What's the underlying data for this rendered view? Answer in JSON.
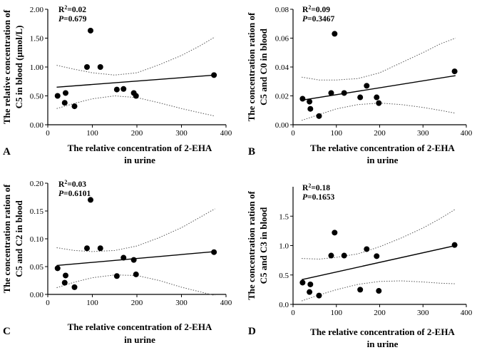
{
  "figure": {
    "panels": [
      {
        "id": "A",
        "label": "A"
      },
      {
        "id": "B",
        "label": "B"
      },
      {
        "id": "C",
        "label": "C"
      },
      {
        "id": "D",
        "label": "D"
      }
    ]
  },
  "chart_data": [
    {
      "type": "scatter",
      "panel": "A",
      "xlabel_line1": "The relative concentration of 2-EHA",
      "xlabel_line2": "in urine",
      "ylabel_line1": "The relative concentration of",
      "ylabel_line2": "C5 in blood (μmol/L)",
      "xlim": [
        0,
        400
      ],
      "ylim": [
        0,
        2.0
      ],
      "xticks": [
        0,
        100,
        200,
        300,
        400
      ],
      "xtick_labels": [
        "0",
        "100",
        "200",
        "300",
        "400"
      ],
      "yticks": [
        0,
        0.5,
        1.0,
        1.5,
        2.0
      ],
      "ytick_labels": [
        "0.00",
        "0.50",
        "1.00",
        "1.50",
        "2.00"
      ],
      "r2_prefix": "R",
      "r2_value": "=0.02",
      "p_prefix": "P",
      "p_value": "=0.679",
      "points": [
        [
          22,
          0.5
        ],
        [
          38,
          0.38
        ],
        [
          40,
          0.55
        ],
        [
          60,
          0.32
        ],
        [
          88,
          1.0
        ],
        [
          96,
          1.63
        ],
        [
          118,
          1.0
        ],
        [
          155,
          0.61
        ],
        [
          170,
          0.62
        ],
        [
          193,
          0.55
        ],
        [
          198,
          0.5
        ],
        [
          373,
          0.86
        ]
      ],
      "fit_line": [
        [
          20,
          0.65
        ],
        [
          375,
          0.86
        ]
      ],
      "ci_upper": [
        [
          20,
          1.03
        ],
        [
          60,
          0.96
        ],
        [
          100,
          0.9
        ],
        [
          150,
          0.86
        ],
        [
          200,
          0.9
        ],
        [
          250,
          1.04
        ],
        [
          300,
          1.2
        ],
        [
          340,
          1.36
        ],
        [
          375,
          1.52
        ]
      ],
      "ci_lower": [
        [
          20,
          0.28
        ],
        [
          60,
          0.37
        ],
        [
          100,
          0.45
        ],
        [
          150,
          0.5
        ],
        [
          200,
          0.47
        ],
        [
          250,
          0.38
        ],
        [
          300,
          0.28
        ],
        [
          340,
          0.21
        ],
        [
          375,
          0.15
        ]
      ]
    },
    {
      "type": "scatter",
      "panel": "B",
      "xlabel_line1": "The relative concentration of 2-EHA",
      "xlabel_line2": "in urine",
      "ylabel_line1": "The concentration ration of",
      "ylabel_line2": "C5 and C0 in blood",
      "xlim": [
        0,
        400
      ],
      "ylim": [
        0,
        0.08
      ],
      "xticks": [
        0,
        100,
        200,
        300,
        400
      ],
      "xtick_labels": [
        "0",
        "100",
        "200",
        "300",
        "400"
      ],
      "yticks": [
        0,
        0.02,
        0.04,
        0.06,
        0.08
      ],
      "ytick_labels": [
        "0.00",
        "0.02",
        "0.04",
        "0.06",
        "0.08"
      ],
      "r2_prefix": "R",
      "r2_value": "=0.09",
      "p_prefix": "P",
      "p_value": "=0.3467",
      "points": [
        [
          22,
          0.018
        ],
        [
          38,
          0.016
        ],
        [
          40,
          0.011
        ],
        [
          60,
          0.006
        ],
        [
          88,
          0.022
        ],
        [
          96,
          0.063
        ],
        [
          118,
          0.022
        ],
        [
          155,
          0.019
        ],
        [
          170,
          0.027
        ],
        [
          193,
          0.019
        ],
        [
          198,
          0.015
        ],
        [
          373,
          0.037
        ]
      ],
      "fit_line": [
        [
          20,
          0.017
        ],
        [
          375,
          0.034
        ]
      ],
      "ci_upper": [
        [
          20,
          0.033
        ],
        [
          60,
          0.031
        ],
        [
          100,
          0.031
        ],
        [
          150,
          0.032
        ],
        [
          200,
          0.036
        ],
        [
          250,
          0.043
        ],
        [
          300,
          0.05
        ],
        [
          340,
          0.056
        ],
        [
          375,
          0.06
        ]
      ],
      "ci_lower": [
        [
          20,
          0.003
        ],
        [
          60,
          0.007
        ],
        [
          100,
          0.011
        ],
        [
          150,
          0.014
        ],
        [
          200,
          0.015
        ],
        [
          250,
          0.014
        ],
        [
          300,
          0.012
        ],
        [
          340,
          0.01
        ],
        [
          375,
          0.008
        ]
      ]
    },
    {
      "type": "scatter",
      "panel": "C",
      "xlabel_line1": "The relative concentration of 2-EHA",
      "xlabel_line2": "in urine",
      "ylabel_line1": "The concentration ration of",
      "ylabel_line2": "C5 and C2 in blood",
      "xlim": [
        0,
        400
      ],
      "ylim": [
        0,
        0.2
      ],
      "xticks": [
        0,
        100,
        200,
        300,
        400
      ],
      "xtick_labels": [
        "0",
        "100",
        "200",
        "300",
        "400"
      ],
      "yticks": [
        0,
        0.05,
        0.1,
        0.15,
        0.2
      ],
      "ytick_labels": [
        "0.00",
        "0.05",
        "0.10",
        "0.15",
        "0.20"
      ],
      "r2_prefix": "R",
      "r2_value": "=0.03",
      "p_prefix": "P",
      "p_value": "=0.6101",
      "points": [
        [
          22,
          0.047
        ],
        [
          38,
          0.021
        ],
        [
          40,
          0.034
        ],
        [
          60,
          0.013
        ],
        [
          88,
          0.083
        ],
        [
          96,
          0.17
        ],
        [
          118,
          0.083
        ],
        [
          155,
          0.033
        ],
        [
          170,
          0.066
        ],
        [
          193,
          0.062
        ],
        [
          198,
          0.036
        ],
        [
          373,
          0.076
        ]
      ],
      "fit_line": [
        [
          20,
          0.052
        ],
        [
          375,
          0.077
        ]
      ],
      "ci_upper": [
        [
          20,
          0.084
        ],
        [
          60,
          0.079
        ],
        [
          100,
          0.077
        ],
        [
          150,
          0.079
        ],
        [
          200,
          0.087
        ],
        [
          250,
          0.102
        ],
        [
          300,
          0.12
        ],
        [
          340,
          0.138
        ],
        [
          375,
          0.154
        ]
      ],
      "ci_lower": [
        [
          20,
          0.012
        ],
        [
          60,
          0.022
        ],
        [
          100,
          0.03
        ],
        [
          150,
          0.035
        ],
        [
          200,
          0.034
        ],
        [
          250,
          0.025
        ],
        [
          300,
          0.013
        ],
        [
          340,
          0.005
        ],
        [
          375,
          -0.002
        ]
      ]
    },
    {
      "type": "scatter",
      "panel": "D",
      "xlabel_line1": "The relative concentration of 2-EHA",
      "xlabel_line2": "in urine",
      "ylabel_line1": "The concentration ration of",
      "ylabel_line2": "C5 and C3 in blood",
      "xlim": [
        0,
        400
      ],
      "ylim": [
        0,
        2.0
      ],
      "xticks": [
        0,
        100,
        200,
        300,
        400
      ],
      "xtick_labels": [
        "0",
        "100",
        "200",
        "300",
        "400"
      ],
      "yticks": [
        0,
        0.5,
        1.0,
        1.5
      ],
      "ytick_labels": [
        "0.0",
        "0.5",
        "1.0",
        "1.5"
      ],
      "r2_prefix": "R",
      "r2_value": "=0.18",
      "p_prefix": "P",
      "p_value": "=0.1653",
      "points": [
        [
          22,
          0.37
        ],
        [
          38,
          0.21
        ],
        [
          40,
          0.34
        ],
        [
          60,
          0.15
        ],
        [
          88,
          0.83
        ],
        [
          96,
          1.22
        ],
        [
          118,
          0.83
        ],
        [
          155,
          0.25
        ],
        [
          170,
          0.94
        ],
        [
          193,
          0.82
        ],
        [
          198,
          0.23
        ],
        [
          373,
          1.01
        ]
      ],
      "fit_line": [
        [
          20,
          0.42
        ],
        [
          375,
          1.0
        ]
      ],
      "ci_upper": [
        [
          20,
          0.78
        ],
        [
          60,
          0.77
        ],
        [
          100,
          0.8
        ],
        [
          150,
          0.86
        ],
        [
          200,
          0.98
        ],
        [
          250,
          1.13
        ],
        [
          300,
          1.3
        ],
        [
          340,
          1.46
        ],
        [
          375,
          1.62
        ]
      ],
      "ci_lower": [
        [
          20,
          0.06
        ],
        [
          60,
          0.16
        ],
        [
          100,
          0.25
        ],
        [
          150,
          0.34
        ],
        [
          200,
          0.39
        ],
        [
          250,
          0.4
        ],
        [
          300,
          0.38
        ],
        [
          340,
          0.36
        ],
        [
          375,
          0.35
        ]
      ]
    }
  ]
}
